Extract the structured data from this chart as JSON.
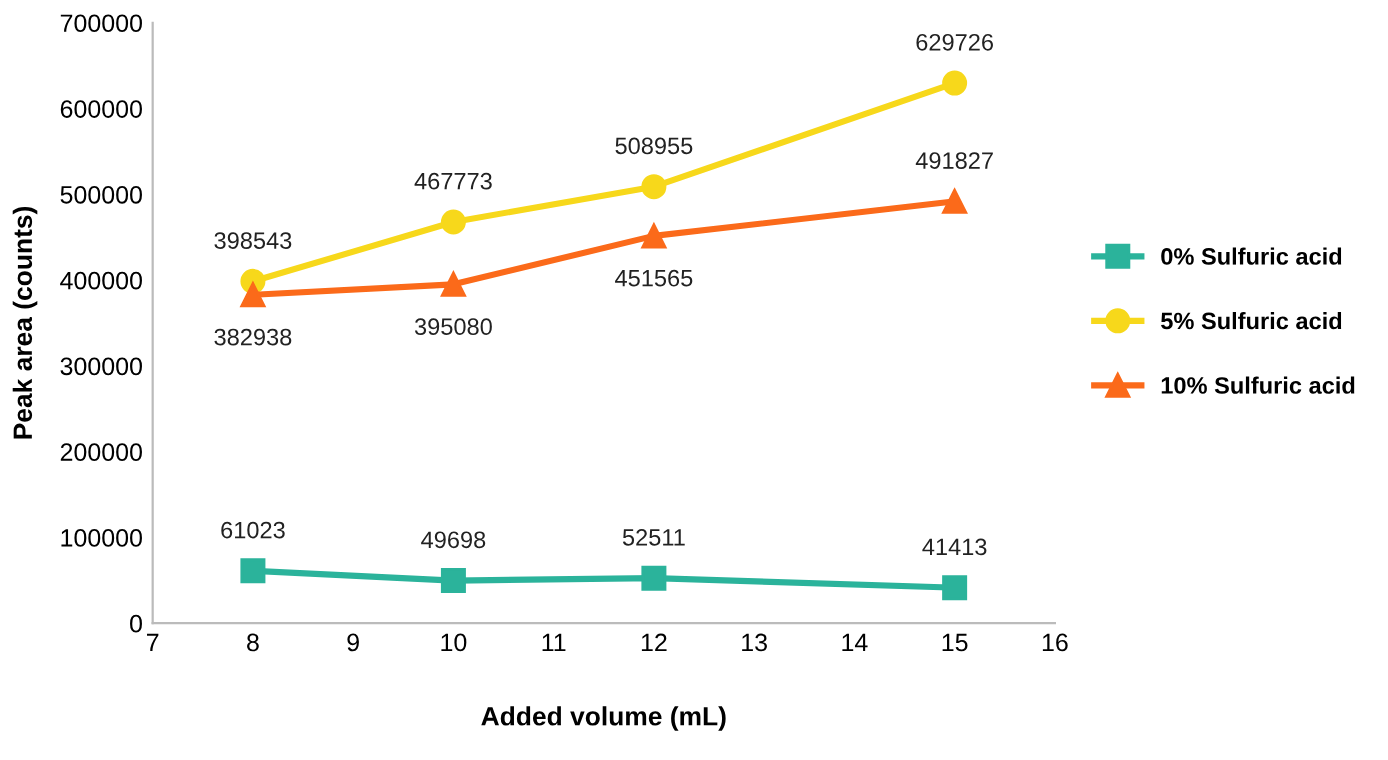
{
  "chart_data": {
    "type": "line",
    "xlabel": "Added volume (mL)",
    "ylabel": "Peak area (counts)",
    "x": [
      8,
      10,
      12,
      15
    ],
    "series": [
      {
        "name": "0% Sulfuric acid",
        "color": "#2bb39b",
        "marker": "square",
        "values": [
          61023,
          49698,
          52511,
          41413
        ]
      },
      {
        "name": "5% Sulfuric acid",
        "color": "#f7d81b",
        "marker": "circle",
        "values": [
          398543,
          467773,
          508955,
          629726
        ]
      },
      {
        "name": "10% Sulfuric acid",
        "color": "#fb6a1a",
        "marker": "triangle",
        "values": [
          382938,
          395080,
          451565,
          491827
        ]
      }
    ],
    "xlim": [
      7,
      16
    ],
    "xticks": [
      7,
      8,
      9,
      10,
      11,
      12,
      13,
      14,
      15,
      16
    ],
    "ylim": [
      0,
      700000
    ],
    "yticks": [
      0,
      100000,
      200000,
      300000,
      400000,
      500000,
      600000,
      700000
    ],
    "data_labels": true,
    "legend": "right",
    "grid": false,
    "line_style": "solid"
  }
}
